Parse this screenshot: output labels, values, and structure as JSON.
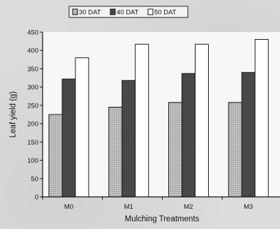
{
  "chart_data": {
    "type": "bar",
    "categories": [
      "M0",
      "M1",
      "M2",
      "M3"
    ],
    "series": [
      {
        "name": "30 DAT",
        "values": [
          225,
          245,
          258,
          258
        ]
      },
      {
        "name": "40 DAT",
        "values": [
          322,
          318,
          337,
          340
        ]
      },
      {
        "name": "50 DAT",
        "values": [
          380,
          417,
          417,
          430
        ]
      }
    ],
    "xlabel": "Mulching Treatments",
    "ylabel": "Leaf yield  (g)",
    "ylim": [
      0,
      450
    ],
    "yticks": [
      0,
      50,
      100,
      150,
      200,
      250,
      300,
      350,
      400,
      450
    ],
    "grid": false,
    "legend_position": "top",
    "colors": {
      "30 DAT": "#b4b4b4",
      "40 DAT": "#555555",
      "50 DAT": "#ffffff"
    }
  }
}
